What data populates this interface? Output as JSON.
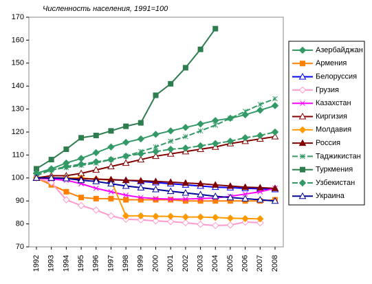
{
  "chart_data": {
    "type": "line",
    "title": "Численность населения, 1991=100",
    "categories": [
      "1992",
      "1993",
      "1994",
      "1995",
      "1996",
      "1997",
      "1998",
      "1999",
      "2000",
      "2001",
      "2002",
      "2003",
      "2004",
      "2005",
      "2006",
      "2007",
      "2008"
    ],
    "ylim": [
      70,
      170
    ],
    "yticks": [
      70,
      80,
      90,
      100,
      110,
      120,
      130,
      140,
      150,
      160,
      170
    ],
    "legend": "right",
    "series": [
      {
        "name": "Азербайджан",
        "color": "#339966",
        "marker": "diamond",
        "dash": false,
        "values": [
          102,
          104,
          106.5,
          108.5,
          111,
          113.5,
          115.5,
          117,
          119,
          120.5,
          122,
          123.5,
          125,
          126,
          127.5,
          129.5,
          131.5
        ]
      },
      {
        "name": "Армения",
        "color": "#ff8000",
        "marker": "square",
        "dash": false,
        "values": [
          100,
          97,
          94,
          91.5,
          91,
          91,
          90.5,
          90.5,
          90.5,
          90.5,
          90,
          90,
          90,
          90,
          90,
          90,
          90.5
        ]
      },
      {
        "name": "Белоруссия",
        "color": "#0000ff",
        "marker": "triangle-open",
        "dash": false,
        "values": [
          100,
          100,
          100,
          99.8,
          99.5,
          99.2,
          99,
          98.5,
          98,
          97.5,
          97,
          96.5,
          96,
          95.8,
          95.5,
          95.3,
          95
        ]
      },
      {
        "name": "Грузия",
        "color": "#ff99cc",
        "marker": "diamond-open",
        "dash": false,
        "values": [
          100,
          98,
          90.5,
          88,
          86,
          83.5,
          82,
          81.8,
          81.3,
          81,
          80.5,
          79.8,
          79.3,
          79.5,
          80.8,
          80.5,
          null
        ]
      },
      {
        "name": "Казахстан",
        "color": "#ff00ff",
        "marker": "star",
        "dash": false,
        "values": [
          100,
          99.5,
          99,
          97.5,
          95.5,
          94,
          92.5,
          91.5,
          91,
          90.8,
          90.8,
          91,
          91.3,
          92,
          93,
          94,
          95.5
        ]
      },
      {
        "name": "Киргизия",
        "color": "#800000",
        "marker": "triangle-open",
        "dash": false,
        "values": [
          100,
          101,
          101,
          102,
          103.5,
          105,
          106.5,
          108,
          109.5,
          110.5,
          111.5,
          112.5,
          113.5,
          115,
          116,
          117,
          118
        ]
      },
      {
        "name": "Молдавия",
        "color": "#ff9900",
        "marker": "diamond",
        "dash": false,
        "values": [
          100,
          100,
          100,
          100,
          99.5,
          99,
          83.5,
          83.5,
          83.3,
          83.3,
          83,
          83,
          82.8,
          82.5,
          82.3,
          82.2,
          null
        ]
      },
      {
        "name": "Россия",
        "color": "#800000",
        "marker": "triangle",
        "dash": false,
        "values": [
          100,
          100,
          99.8,
          99.7,
          99.5,
          99.3,
          99,
          98.8,
          98.5,
          98.2,
          97.8,
          97.5,
          97,
          96.5,
          96,
          95.8,
          95.5
        ]
      },
      {
        "name": "Таджикистан",
        "color": "#339966",
        "marker": "x",
        "dash": true,
        "values": [
          101,
          103.5,
          104.5,
          105.5,
          106.5,
          108,
          109.5,
          111.5,
          113.5,
          116,
          118,
          120.5,
          123,
          126,
          129,
          132,
          134.5
        ]
      },
      {
        "name": "Туркмения",
        "color": "#2e7d4f",
        "marker": "square",
        "dash": false,
        "values": [
          104,
          108,
          112.5,
          117.5,
          118.5,
          120.5,
          122.5,
          124,
          136,
          141,
          148,
          156,
          165,
          null,
          null,
          null,
          null
        ]
      },
      {
        "name": "Узбекистан",
        "color": "#339966",
        "marker": "diamond",
        "dash": true,
        "values": [
          102,
          103.5,
          105,
          106,
          107,
          108,
          109.5,
          110.5,
          111.5,
          112.5,
          113,
          114,
          115,
          116,
          117.5,
          118.5,
          120
        ]
      },
      {
        "name": "Украина",
        "color": "#000099",
        "marker": "triangle-open",
        "dash": false,
        "values": [
          100,
          100,
          99.8,
          99,
          98.5,
          97.5,
          96.5,
          95.8,
          95,
          94.2,
          93.5,
          92.8,
          92,
          91.5,
          91,
          90.5,
          90
        ]
      }
    ]
  }
}
